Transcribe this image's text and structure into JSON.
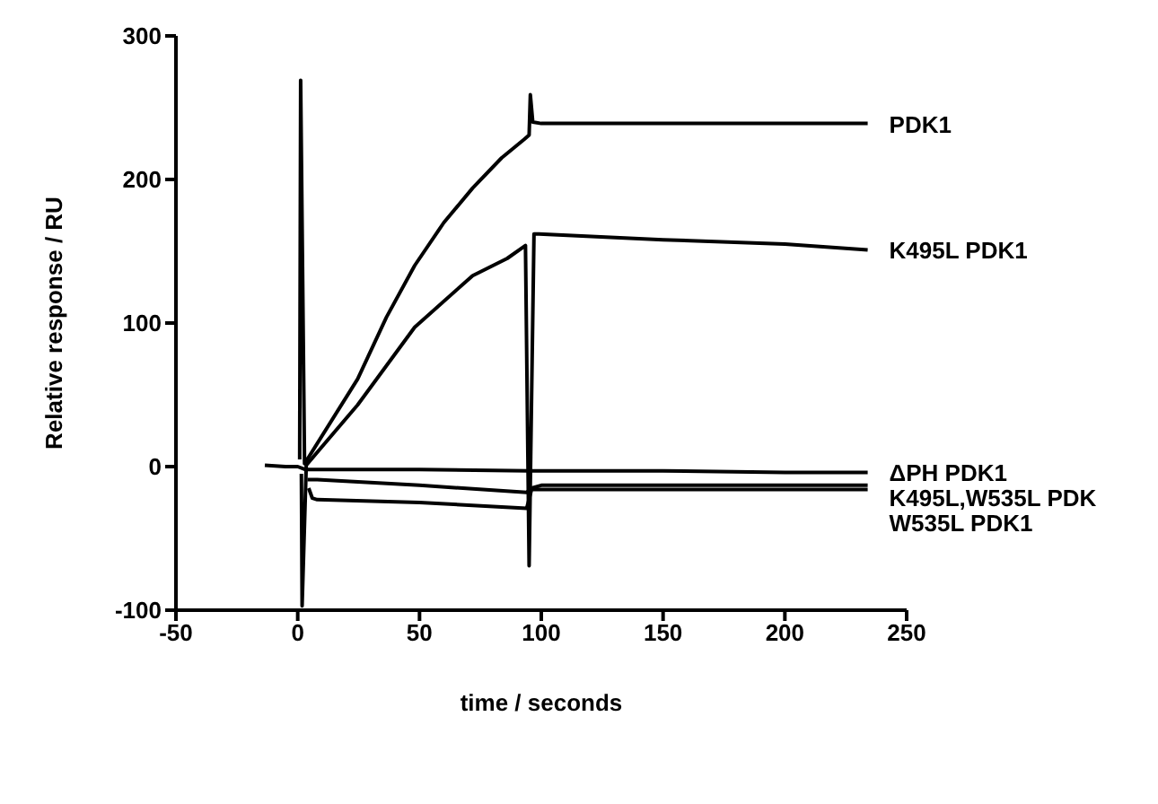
{
  "chart_data": {
    "type": "line",
    "xlabel": "time / seconds",
    "ylabel": "Relative response / RU",
    "xlim": [
      -50,
      250
    ],
    "xticks": [
      -50,
      0,
      50,
      100,
      150,
      200,
      250
    ],
    "ylim": [
      -100,
      300
    ],
    "yticks": [
      -100,
      0,
      100,
      200,
      300
    ],
    "marker": "none",
    "line_style": "solid",
    "series": [
      {
        "name": "PDK1",
        "color": "#000000",
        "x": [
          0.8,
          1.2,
          2.8,
          24.6,
          36.4,
          48,
          60,
          71.8,
          83.7,
          93,
          95,
          95.5,
          96.5,
          100,
          150,
          200,
          234
        ],
        "values": [
          5,
          269,
          2,
          61,
          104,
          140,
          170,
          194,
          215,
          228,
          231,
          259,
          240,
          239,
          239,
          239,
          239
        ]
      },
      {
        "name": "K495L PDK1",
        "color": "#000000",
        "x": [
          1.5,
          1.8,
          3.5,
          24.6,
          48,
          71.8,
          86,
          93.5,
          95,
          97,
          99,
          150,
          200,
          234
        ],
        "values": [
          -5,
          -97,
          1,
          43,
          97,
          133,
          145,
          154,
          -69,
          162,
          162,
          158,
          155,
          151
        ]
      },
      {
        "name": "ΔPH PDK1",
        "color": "#000000",
        "x": [
          -13.5,
          -5,
          0,
          3,
          10,
          50,
          95,
          100,
          150,
          200,
          234
        ],
        "values": [
          1,
          0,
          0,
          -2,
          -2,
          -2,
          -3,
          -3,
          -3,
          -4,
          -4
        ]
      },
      {
        "name": "K495L,W535L PDK",
        "color": "#000000",
        "x": [
          4,
          8,
          50,
          94,
          96,
          100,
          150,
          200,
          234
        ],
        "values": [
          -9,
          -9,
          -13,
          -18,
          -15,
          -13,
          -13,
          -13,
          -13
        ]
      },
      {
        "name": "W535L PDK1",
        "color": "#000000",
        "x": [
          4.5,
          6,
          8,
          50,
          94,
          96,
          100,
          150,
          200,
          234
        ],
        "values": [
          -15,
          -22,
          -23,
          -25,
          -29,
          -16,
          -16,
          -16,
          -16,
          -16
        ]
      }
    ]
  }
}
